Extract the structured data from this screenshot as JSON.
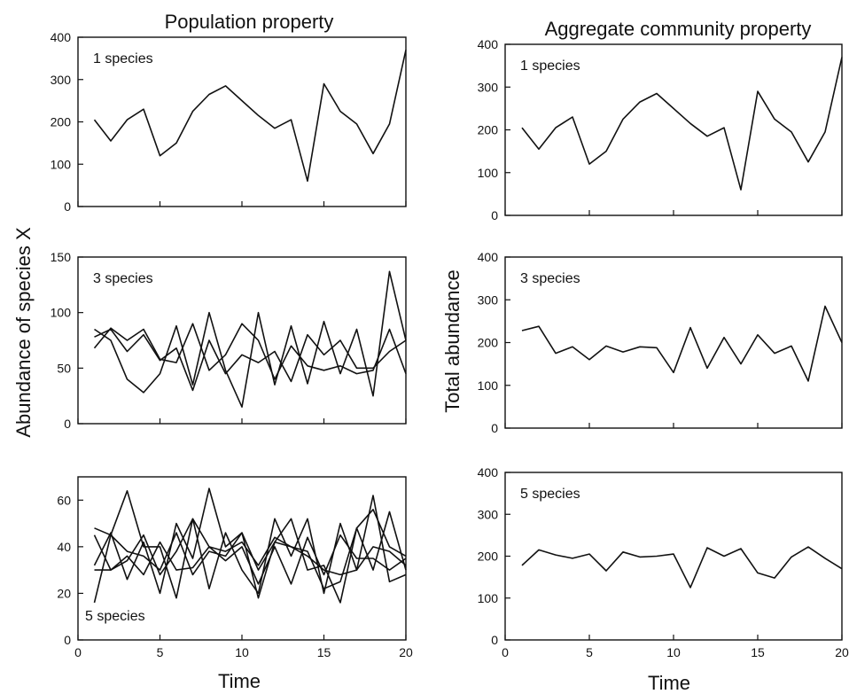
{
  "figure": {
    "left_column_title": "Population property",
    "right_column_title": "Aggregate community property",
    "left_ylabel": "Abundance of species X",
    "right_ylabel": "Total abundance",
    "xlabel": "Time"
  },
  "chart_data": [
    {
      "type": "line",
      "panel_label": "1 species",
      "xlim": [
        0,
        20
      ],
      "ylim": [
        0,
        400
      ],
      "yticks": [
        0,
        100,
        200,
        300,
        400
      ],
      "xticks": [
        0,
        5,
        10,
        15,
        20
      ],
      "x": [
        1,
        2,
        3,
        4,
        5,
        6,
        7,
        8,
        9,
        10,
        11,
        12,
        13,
        14,
        15,
        16,
        17,
        18,
        19,
        20
      ],
      "series": [
        {
          "values": [
            205,
            155,
            205,
            230,
            120,
            150,
            225,
            265,
            285,
            250,
            215,
            185,
            205,
            60,
            290,
            225,
            195,
            125,
            195,
            370
          ]
        }
      ]
    },
    {
      "type": "line",
      "panel_label": "3 species",
      "xlim": [
        0,
        20
      ],
      "ylim": [
        0,
        150
      ],
      "yticks": [
        0,
        50,
        100,
        150
      ],
      "xticks": [
        0,
        5,
        10,
        15,
        20
      ],
      "x": [
        1,
        2,
        3,
        4,
        5,
        6,
        7,
        8,
        9,
        10,
        11,
        12,
        13,
        14,
        15,
        16,
        17,
        18,
        19,
        20
      ],
      "series": [
        {
          "values": [
            85,
            75,
            40,
            28,
            45,
            88,
            35,
            100,
            48,
            15,
            100,
            35,
            88,
            36,
            92,
            45,
            85,
            25,
            137,
            75
          ]
        },
        {
          "values": [
            68,
            86,
            75,
            85,
            58,
            55,
            90,
            48,
            62,
            90,
            75,
            40,
            70,
            52,
            48,
            52,
            45,
            48,
            85,
            45
          ]
        },
        {
          "values": [
            78,
            85,
            65,
            80,
            57,
            68,
            30,
            75,
            45,
            62,
            55,
            65,
            38,
            80,
            62,
            75,
            50,
            50,
            65,
            75
          ]
        }
      ]
    },
    {
      "type": "line",
      "panel_label": "5 species",
      "xlim": [
        0,
        20
      ],
      "ylim": [
        0,
        70
      ],
      "yticks": [
        0,
        20,
        40,
        60
      ],
      "xticks": [
        0,
        5,
        10,
        15,
        20
      ],
      "x": [
        1,
        2,
        3,
        4,
        5,
        6,
        7,
        8,
        9,
        10,
        11,
        12,
        13,
        14,
        15,
        16,
        17,
        18,
        19,
        20
      ],
      "series": [
        {
          "values": [
            16,
            45,
            64,
            40,
            40,
            18,
            52,
            22,
            46,
            30,
            20,
            52,
            36,
            52,
            20,
            50,
            30,
            62,
            25,
            28
          ]
        },
        {
          "values": [
            32,
            46,
            26,
            42,
            20,
            50,
            35,
            65,
            40,
            46,
            18,
            42,
            52,
            30,
            32,
            16,
            48,
            30,
            55,
            30
          ]
        },
        {
          "values": [
            48,
            45,
            38,
            36,
            30,
            46,
            28,
            38,
            36,
            46,
            30,
            42,
            40,
            36,
            30,
            28,
            30,
            40,
            38,
            32
          ]
        },
        {
          "values": [
            45,
            30,
            36,
            28,
            42,
            30,
            31,
            40,
            34,
            40,
            24,
            40,
            24,
            44,
            28,
            45,
            35,
            35,
            30,
            35
          ]
        },
        {
          "values": [
            30,
            30,
            34,
            45,
            28,
            38,
            52,
            40,
            38,
            42,
            32,
            44,
            40,
            38,
            22,
            25,
            48,
            56,
            40,
            36
          ]
        }
      ]
    },
    {
      "type": "line",
      "panel_label": "1 species",
      "xlim": [
        0,
        20
      ],
      "ylim": [
        0,
        400
      ],
      "yticks": [
        0,
        100,
        200,
        300,
        400
      ],
      "xticks": [
        0,
        5,
        10,
        15,
        20
      ],
      "x": [
        1,
        2,
        3,
        4,
        5,
        6,
        7,
        8,
        9,
        10,
        11,
        12,
        13,
        14,
        15,
        16,
        17,
        18,
        19,
        20
      ],
      "series": [
        {
          "values": [
            205,
            155,
            205,
            230,
            120,
            150,
            225,
            265,
            285,
            250,
            215,
            185,
            205,
            60,
            290,
            225,
            195,
            125,
            195,
            370
          ]
        }
      ]
    },
    {
      "type": "line",
      "panel_label": "3 species",
      "xlim": [
        0,
        20
      ],
      "ylim": [
        0,
        400
      ],
      "yticks": [
        0,
        100,
        200,
        300,
        400
      ],
      "xticks": [
        0,
        5,
        10,
        15,
        20
      ],
      "x": [
        1,
        2,
        3,
        4,
        5,
        6,
        7,
        8,
        9,
        10,
        11,
        12,
        13,
        14,
        15,
        16,
        17,
        18,
        19,
        20
      ],
      "series": [
        {
          "values": [
            228,
            238,
            175,
            190,
            160,
            192,
            178,
            190,
            188,
            130,
            235,
            140,
            212,
            150,
            218,
            175,
            192,
            110,
            285,
            200
          ]
        }
      ]
    },
    {
      "type": "line",
      "panel_label": "5 species",
      "xlim": [
        0,
        20
      ],
      "ylim": [
        0,
        400
      ],
      "yticks": [
        0,
        100,
        200,
        300,
        400
      ],
      "xticks": [
        0,
        5,
        10,
        15,
        20
      ],
      "x": [
        1,
        2,
        3,
        4,
        5,
        6,
        7,
        8,
        9,
        10,
        11,
        12,
        13,
        14,
        15,
        16,
        17,
        18,
        19,
        20
      ],
      "series": [
        {
          "values": [
            178,
            215,
            203,
            195,
            205,
            165,
            210,
            198,
            200,
            205,
            125,
            220,
            200,
            218,
            160,
            148,
            198,
            222,
            195,
            170
          ]
        }
      ]
    }
  ]
}
